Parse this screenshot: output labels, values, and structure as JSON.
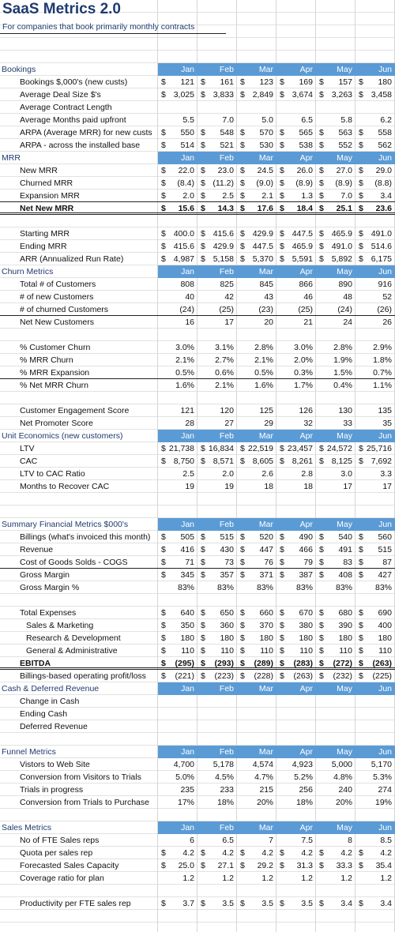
{
  "title": "SaaS Metrics 2.0",
  "subtitle": "For companies that book primarily monthly contracts",
  "months": [
    "Jan",
    "Feb",
    "Mar",
    "Apr",
    "May",
    "Jun"
  ],
  "rows": [
    {
      "type": "header",
      "y": 80,
      "label": "Bookings"
    },
    {
      "y": 96,
      "label": "Bookings $,000's (new custs)",
      "dollar": true,
      "values": [
        "121",
        "161",
        "123",
        "169",
        "157",
        "180"
      ]
    },
    {
      "y": 112,
      "label": "Average Deal Size $'s",
      "dollar": true,
      "values": [
        "3,025",
        "3,833",
        "2,849",
        "3,674",
        "3,263",
        "3,458"
      ]
    },
    {
      "y": 128,
      "label": "Average Contract Length",
      "values": []
    },
    {
      "y": 144,
      "label": "Average Months paid upfront",
      "values": [
        "5.5",
        "7.0",
        "5.0",
        "6.5",
        "5.8",
        "6.2"
      ]
    },
    {
      "y": 160,
      "label": "ARPA (Average MRR) for new custs",
      "dollar": true,
      "values": [
        "550",
        "548",
        "570",
        "565",
        "563",
        "558"
      ]
    },
    {
      "y": 176,
      "label": "ARPA - across the installed base",
      "dollar": true,
      "values": [
        "514",
        "521",
        "530",
        "538",
        "552",
        "562"
      ]
    },
    {
      "type": "header",
      "y": 192,
      "label": "MRR"
    },
    {
      "y": 208,
      "label": "New MRR",
      "dollar": true,
      "values": [
        "22.0",
        "23.0",
        "24.5",
        "26.0",
        "27.0",
        "29.0"
      ]
    },
    {
      "y": 224,
      "label": "Churned MRR",
      "dollar": true,
      "values": [
        "(8.4)",
        "(11.2)",
        "(9.0)",
        "(8.9)",
        "(8.9)",
        "(8.8)"
      ]
    },
    {
      "y": 240,
      "label": "Expansion MRR",
      "dollar": true,
      "underline": true,
      "values": [
        "2.0",
        "2.5",
        "2.1",
        "1.3",
        "7.0",
        "3.4"
      ]
    },
    {
      "y": 256,
      "label": "Net New MRR",
      "dollar": true,
      "bold": true,
      "double": true,
      "values": [
        "15.6",
        "14.3",
        "17.6",
        "18.4",
        "25.1",
        "23.6"
      ]
    },
    {
      "y": 288,
      "label": "Starting MRR",
      "dollar": true,
      "values": [
        "400.0",
        "415.6",
        "429.9",
        "447.5",
        "465.9",
        "491.0"
      ]
    },
    {
      "y": 304,
      "label": "Ending MRR",
      "dollar": true,
      "values": [
        "415.6",
        "429.9",
        "447.5",
        "465.9",
        "491.0",
        "514.6"
      ]
    },
    {
      "y": 320,
      "label": "ARR (Annualized Run Rate)",
      "dollar": true,
      "values": [
        "4,987",
        "5,158",
        "5,370",
        "5,591",
        "5,892",
        "6,175"
      ]
    },
    {
      "type": "header",
      "y": 336,
      "label": "Churn Metrics"
    },
    {
      "y": 352,
      "label": "Total # of Customers",
      "values": [
        "808",
        "825",
        "845",
        "866",
        "890",
        "916"
      ]
    },
    {
      "y": 368,
      "label": "# of new Customers",
      "values": [
        "40",
        "42",
        "43",
        "46",
        "48",
        "52"
      ]
    },
    {
      "y": 384,
      "label": "# of churned Customers",
      "underline": true,
      "values": [
        "(24)",
        "(25)",
        "(23)",
        "(25)",
        "(24)",
        "(26)"
      ]
    },
    {
      "y": 400,
      "label": "Net New Customers",
      "values": [
        "16",
        "17",
        "20",
        "21",
        "24",
        "26"
      ]
    },
    {
      "y": 432,
      "label": "% Customer Churn",
      "values": [
        "3.0%",
        "3.1%",
        "2.8%",
        "3.0%",
        "2.8%",
        "2.9%"
      ]
    },
    {
      "y": 448,
      "label": "% MRR Churn",
      "values": [
        "2.1%",
        "2.7%",
        "2.1%",
        "2.0%",
        "1.9%",
        "1.8%"
      ]
    },
    {
      "y": 464,
      "label": "% MRR Expansion",
      "underline": true,
      "values": [
        "0.5%",
        "0.6%",
        "0.5%",
        "0.3%",
        "1.5%",
        "0.7%"
      ]
    },
    {
      "y": 480,
      "label": "% Net MRR Churn",
      "values": [
        "1.6%",
        "2.1%",
        "1.6%",
        "1.7%",
        "0.4%",
        "1.1%"
      ]
    },
    {
      "y": 512,
      "label": "Customer Engagement Score",
      "values": [
        "121",
        "120",
        "125",
        "126",
        "130",
        "135"
      ]
    },
    {
      "y": 528,
      "label": "Net Promoter Score",
      "values": [
        "28",
        "27",
        "29",
        "32",
        "33",
        "35"
      ]
    },
    {
      "type": "header",
      "y": 544,
      "label": "Unit Economics (new customers)"
    },
    {
      "y": 560,
      "label": "LTV",
      "dollar": true,
      "values": [
        "21,738",
        "16,834",
        "22,519",
        "23,457",
        "24,572",
        "25,716"
      ]
    },
    {
      "y": 576,
      "label": "CAC",
      "dollar": true,
      "values": [
        "8,750",
        "8,571",
        "8,605",
        "8,261",
        "8,125",
        "7,692"
      ]
    },
    {
      "y": 592,
      "label": "LTV to CAC Ratio",
      "values": [
        "2.5",
        "2.0",
        "2.6",
        "2.8",
        "3.0",
        "3.3"
      ]
    },
    {
      "y": 608,
      "label": "Months to Recover CAC",
      "values": [
        "19",
        "19",
        "18",
        "18",
        "17",
        "17"
      ]
    },
    {
      "type": "header",
      "y": 656,
      "label": "Summary Financial Metrics $000's"
    },
    {
      "y": 672,
      "label": "Billings (what's invoiced this month)",
      "dollar": true,
      "values": [
        "505",
        "515",
        "520",
        "490",
        "540",
        "560"
      ]
    },
    {
      "y": 688,
      "label": "Revenue",
      "dollar": true,
      "values": [
        "416",
        "430",
        "447",
        "466",
        "491",
        "515"
      ]
    },
    {
      "y": 704,
      "label": "Cost of Goods Solds - COGS",
      "dollar": true,
      "underline": true,
      "values": [
        "71",
        "73",
        "76",
        "79",
        "83",
        "87"
      ]
    },
    {
      "y": 720,
      "label": "Gross Margin",
      "dollar": true,
      "values": [
        "345",
        "357",
        "371",
        "387",
        "408",
        "427"
      ]
    },
    {
      "y": 736,
      "label": "Gross Margin %",
      "values": [
        "83%",
        "83%",
        "83%",
        "83%",
        "83%",
        "83%"
      ]
    },
    {
      "y": 768,
      "label": "Total Expenses",
      "dollar": true,
      "values": [
        "640",
        "650",
        "660",
        "670",
        "680",
        "690"
      ]
    },
    {
      "y": 784,
      "label": "Sales & Marketing",
      "indent": true,
      "dollar": true,
      "values": [
        "350",
        "360",
        "370",
        "380",
        "390",
        "400"
      ]
    },
    {
      "y": 800,
      "label": "Research & Development",
      "indent": true,
      "dollar": true,
      "values": [
        "180",
        "180",
        "180",
        "180",
        "180",
        "180"
      ]
    },
    {
      "y": 816,
      "label": "General & Administrative",
      "indent": true,
      "dollar": true,
      "values": [
        "110",
        "110",
        "110",
        "110",
        "110",
        "110"
      ]
    },
    {
      "y": 832,
      "label": "EBITDA",
      "dollar": true,
      "bold": true,
      "double": true,
      "values": [
        "(295)",
        "(293)",
        "(289)",
        "(283)",
        "(272)",
        "(263)"
      ]
    },
    {
      "y": 848,
      "label": "Billings-based operating profit/loss",
      "dollar": true,
      "values": [
        "(221)",
        "(223)",
        "(228)",
        "(263)",
        "(232)",
        "(225)"
      ]
    },
    {
      "type": "header",
      "y": 864,
      "label": "Cash & Deferred Revenue"
    },
    {
      "y": 880,
      "label": "Change in Cash",
      "values": []
    },
    {
      "y": 896,
      "label": "Ending Cash",
      "values": []
    },
    {
      "y": 912,
      "label": "Deferred Revenue",
      "values": []
    },
    {
      "type": "header",
      "y": 944,
      "label": "Funnel Metrics"
    },
    {
      "y": 960,
      "label": "Vistors to Web Site",
      "values": [
        "4,700",
        "5,178",
        "4,574",
        "4,923",
        "5,000",
        "5,170"
      ]
    },
    {
      "y": 976,
      "label": "Conversion from Visitors to Trials",
      "values": [
        "5.0%",
        "4.5%",
        "4.7%",
        "5.2%",
        "4.8%",
        "5.3%"
      ]
    },
    {
      "y": 992,
      "label": "Trials in progress",
      "values": [
        "235",
        "233",
        "215",
        "256",
        "240",
        "274"
      ]
    },
    {
      "y": 1008,
      "label": "Conversion from Trials to Purchase",
      "values": [
        "17%",
        "18%",
        "20%",
        "18%",
        "20%",
        "19%"
      ]
    },
    {
      "type": "header",
      "y": 1040,
      "label": "Sales Metrics"
    },
    {
      "y": 1056,
      "label": "No of FTE Sales reps",
      "values": [
        "6",
        "6.5",
        "7",
        "7.5",
        "8",
        "8.5"
      ]
    },
    {
      "y": 1072,
      "label": "Quota per sales rep",
      "dollar": true,
      "values": [
        "4.2",
        "4.2",
        "4.2",
        "4.2",
        "4.2",
        "4.2"
      ]
    },
    {
      "y": 1088,
      "label": "Forecasted Sales Capacity",
      "dollar": true,
      "values": [
        "25.0",
        "27.1",
        "29.2",
        "31.3",
        "33.3",
        "35.4"
      ]
    },
    {
      "y": 1104,
      "label": "Coverage ratio for plan",
      "values": [
        "1.2",
        "1.2",
        "1.2",
        "1.2",
        "1.2",
        "1.2"
      ]
    },
    {
      "y": 1136,
      "label": "Productivity per FTE sales rep",
      "dollar": true,
      "values": [
        "3.7",
        "3.5",
        "3.5",
        "3.5",
        "3.4",
        "3.4"
      ]
    }
  ]
}
